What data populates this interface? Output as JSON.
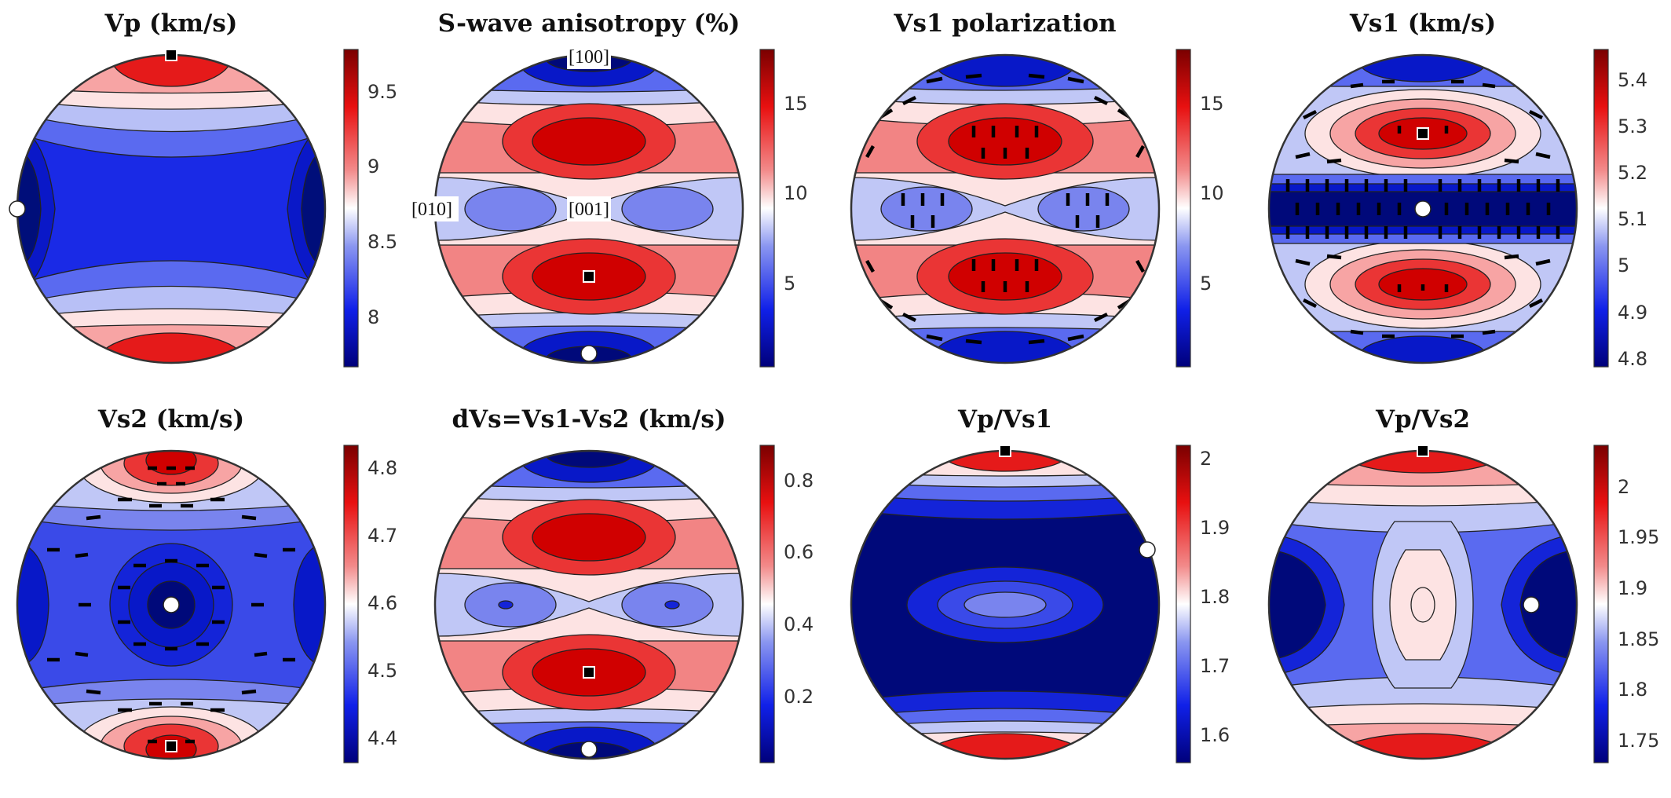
{
  "colors": {
    "low": "#00007a",
    "mid": "#ffffff",
    "high": "#7a0000",
    "outline": "#333333"
  },
  "panels": [
    {
      "title": "Vp (km/s)",
      "ticks": [
        "9.5",
        "9",
        "8.5",
        "8"
      ],
      "chart_data": {
        "type": "heatmap",
        "projection": "stereonet",
        "colorbar_range": [
          7.7,
          9.78
        ],
        "tick_values": [
          9.5,
          9.0,
          8.5,
          8.0
        ],
        "max_marker": "top",
        "min_marker": "left",
        "polarization_ticks": false
      }
    },
    {
      "title": "S-wave anisotropy (%)",
      "ticks": [
        "15",
        "10",
        "5"
      ],
      "annotations": {
        "a100": "[100]",
        "a010": "[010]",
        "a001": "[001]"
      },
      "chart_data": {
        "type": "heatmap",
        "projection": "stereonet",
        "colorbar_range": [
          0.3,
          18
        ],
        "tick_values": [
          15,
          10,
          5
        ],
        "max_marker": "lower-center",
        "min_marker": "bottom",
        "polarization_ticks": false
      }
    },
    {
      "title": "Vs1 polarization",
      "ticks": [
        "15",
        "10",
        "5"
      ],
      "chart_data": {
        "type": "heatmap",
        "projection": "stereonet",
        "colorbar_range": [
          0.3,
          18
        ],
        "tick_values": [
          15,
          10,
          5
        ],
        "polarization_ticks": true
      }
    },
    {
      "title": "Vs1 (km/s)",
      "ticks": [
        "5.4",
        "5.3",
        "5.2",
        "5.1",
        "5",
        "4.9",
        "4.8"
      ],
      "chart_data": {
        "type": "heatmap",
        "projection": "stereonet",
        "colorbar_range": [
          4.78,
          5.46
        ],
        "tick_values": [
          5.4,
          5.3,
          5.2,
          5.1,
          5.0,
          4.9,
          4.8
        ],
        "max_marker": "upper-center",
        "min_marker": "center",
        "polarization_ticks": true
      }
    },
    {
      "title": "Vs2 (km/s)",
      "ticks": [
        "4.8",
        "4.7",
        "4.6",
        "4.5",
        "4.4"
      ],
      "chart_data": {
        "type": "heatmap",
        "projection": "stereonet",
        "colorbar_range": [
          4.36,
          4.83
        ],
        "tick_values": [
          4.8,
          4.7,
          4.6,
          4.5,
          4.4
        ],
        "max_marker": "bottom",
        "min_marker": "center",
        "polarization_ticks": true
      }
    },
    {
      "title": "dVs=Vs1-Vs2 (km/s)",
      "ticks": [
        "0.8",
        "0.6",
        "0.4",
        "0.2"
      ],
      "chart_data": {
        "type": "heatmap",
        "projection": "stereonet",
        "colorbar_range": [
          0.02,
          0.9
        ],
        "tick_values": [
          0.8,
          0.6,
          0.4,
          0.2
        ],
        "max_marker": "lower-center",
        "min_marker": "bottom",
        "polarization_ticks": false
      }
    },
    {
      "title": "Vp/Vs1",
      "ticks": [
        "2",
        "1.9",
        "1.8",
        "1.7",
        "1.6"
      ],
      "chart_data": {
        "type": "heatmap",
        "projection": "stereonet",
        "colorbar_range": [
          1.56,
          2.02
        ],
        "tick_values": [
          2.0,
          1.9,
          1.8,
          1.7,
          1.6
        ],
        "max_marker": "top",
        "min_marker": "right",
        "polarization_ticks": false
      }
    },
    {
      "title": "Vp/Vs2",
      "ticks": [
        "2",
        "1.95",
        "1.9",
        "1.85",
        "1.8",
        "1.75"
      ],
      "chart_data": {
        "type": "heatmap",
        "projection": "stereonet",
        "colorbar_range": [
          1.73,
          2.04
        ],
        "tick_values": [
          2.0,
          1.95,
          1.9,
          1.85,
          1.8,
          1.75
        ],
        "max_marker": "top",
        "min_marker": "right-center",
        "polarization_ticks": false
      }
    }
  ]
}
